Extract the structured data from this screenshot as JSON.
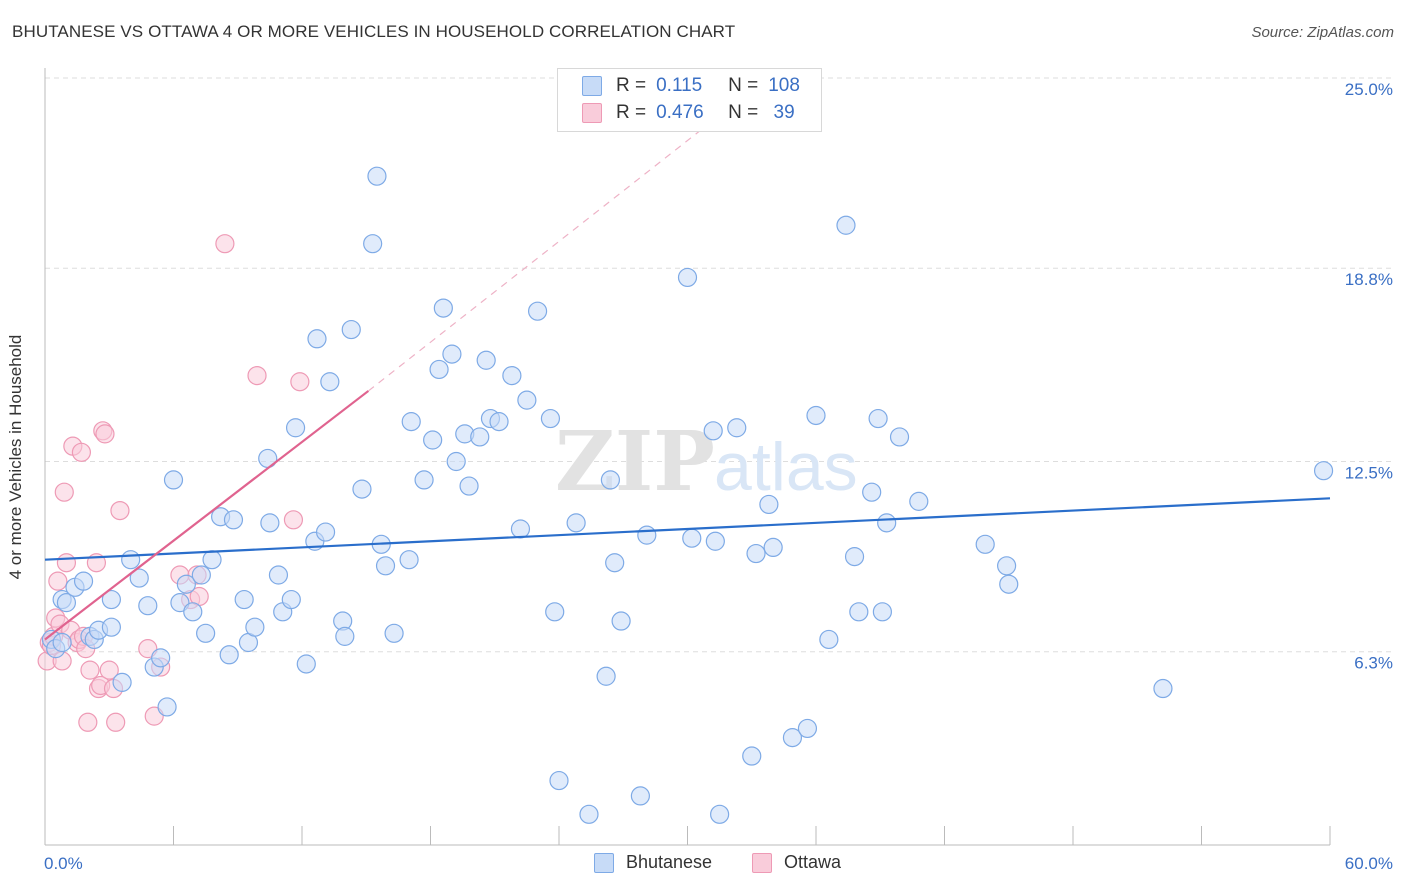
{
  "header": {
    "title": "BHUTANESE VS OTTAWA 4 OR MORE VEHICLES IN HOUSEHOLD CORRELATION CHART",
    "source": "Source: ZipAtlas.com"
  },
  "legend": {
    "rows": [
      {
        "r_label": "R =",
        "r_value": "0.115",
        "n_label": "N =",
        "n_value": "108"
      },
      {
        "r_label": "R =",
        "r_value": "0.476",
        "n_label": "N =",
        "n_value": " 39"
      }
    ]
  },
  "colors": {
    "blue_fill": "#c7dbf7",
    "blue_stroke": "#7eaae6",
    "blue_line": "#2a6ecb",
    "pink_fill": "#f9ccda",
    "pink_stroke": "#ee9ab5",
    "pink_line": "#e0638f",
    "axis_label": "#3a6fc4",
    "grid": "#dddddd"
  },
  "chart_data": {
    "type": "scatter",
    "title": "BHUTANESE VS OTTAWA 4 OR MORE VEHICLES IN HOUSEHOLD CORRELATION CHART",
    "xlabel": "",
    "ylabel": "4 or more Vehicles in Household",
    "xlim": [
      0,
      60
    ],
    "ylim": [
      0,
      25.0
    ],
    "x_tick_labels": [
      "0.0%",
      "60.0%"
    ],
    "y_ticks": [
      6.3,
      12.5,
      18.8,
      25.0
    ],
    "y_tick_labels": [
      "6.3%",
      "12.5%",
      "18.8%",
      "25.0%"
    ],
    "grid": true,
    "watermark": "ZIPatlas",
    "series": [
      {
        "name": "Bhutanese",
        "r": 0.115,
        "n": 108,
        "trend": {
          "x0": 0,
          "y0": 9.3,
          "x1": 60,
          "y1": 11.3
        },
        "points": [
          [
            0.3,
            6.7
          ],
          [
            0.5,
            6.4
          ],
          [
            0.8,
            6.6
          ],
          [
            0.8,
            8.0
          ],
          [
            1.0,
            7.9
          ],
          [
            1.4,
            8.4
          ],
          [
            1.8,
            8.6
          ],
          [
            2.1,
            6.8
          ],
          [
            2.3,
            6.7
          ],
          [
            2.5,
            7.0
          ],
          [
            3.1,
            7.1
          ],
          [
            3.1,
            8.0
          ],
          [
            3.6,
            5.3
          ],
          [
            4.0,
            9.3
          ],
          [
            4.4,
            8.7
          ],
          [
            4.8,
            7.8
          ],
          [
            5.1,
            5.8
          ],
          [
            5.4,
            6.1
          ],
          [
            5.7,
            4.5
          ],
          [
            6.0,
            11.9
          ],
          [
            6.3,
            7.9
          ],
          [
            6.6,
            8.5
          ],
          [
            6.9,
            7.6
          ],
          [
            7.3,
            8.8
          ],
          [
            7.5,
            6.9
          ],
          [
            7.8,
            9.3
          ],
          [
            8.2,
            10.7
          ],
          [
            8.6,
            6.2
          ],
          [
            8.8,
            10.6
          ],
          [
            9.3,
            8.0
          ],
          [
            9.5,
            6.6
          ],
          [
            9.8,
            7.1
          ],
          [
            10.4,
            12.6
          ],
          [
            10.5,
            10.5
          ],
          [
            10.9,
            8.8
          ],
          [
            11.1,
            7.6
          ],
          [
            11.5,
            8.0
          ],
          [
            11.7,
            13.6
          ],
          [
            12.2,
            5.9
          ],
          [
            12.6,
            9.9
          ],
          [
            12.7,
            16.5
          ],
          [
            13.1,
            10.2
          ],
          [
            13.3,
            15.1
          ],
          [
            13.9,
            7.3
          ],
          [
            14.0,
            6.8
          ],
          [
            14.3,
            16.8
          ],
          [
            14.8,
            11.6
          ],
          [
            15.3,
            19.6
          ],
          [
            15.5,
            21.8
          ],
          [
            15.7,
            9.8
          ],
          [
            15.9,
            9.1
          ],
          [
            16.3,
            6.9
          ],
          [
            17.0,
            9.3
          ],
          [
            17.1,
            13.8
          ],
          [
            17.7,
            11.9
          ],
          [
            18.1,
            13.2
          ],
          [
            18.4,
            15.5
          ],
          [
            18.6,
            17.5
          ],
          [
            19.0,
            16.0
          ],
          [
            19.2,
            12.5
          ],
          [
            19.6,
            13.4
          ],
          [
            19.8,
            11.7
          ],
          [
            20.3,
            13.3
          ],
          [
            20.6,
            15.8
          ],
          [
            20.8,
            13.9
          ],
          [
            21.2,
            13.8
          ],
          [
            21.8,
            15.3
          ],
          [
            22.2,
            10.3
          ],
          [
            22.5,
            14.5
          ],
          [
            23.0,
            17.4
          ],
          [
            23.6,
            13.9
          ],
          [
            23.8,
            7.6
          ],
          [
            24.0,
            2.1
          ],
          [
            24.8,
            10.5
          ],
          [
            25.4,
            1.0
          ],
          [
            26.2,
            5.5
          ],
          [
            26.4,
            11.9
          ],
          [
            26.6,
            9.2
          ],
          [
            26.9,
            7.3
          ],
          [
            27.8,
            1.6
          ],
          [
            28.1,
            10.1
          ],
          [
            30.0,
            18.5
          ],
          [
            30.2,
            10.0
          ],
          [
            31.2,
            13.5
          ],
          [
            31.3,
            9.9
          ],
          [
            31.5,
            1.0
          ],
          [
            32.3,
            13.6
          ],
          [
            33.0,
            2.9
          ],
          [
            33.2,
            9.5
          ],
          [
            33.8,
            11.1
          ],
          [
            34.0,
            9.7
          ],
          [
            34.9,
            3.5
          ],
          [
            35.6,
            3.8
          ],
          [
            36.0,
            14.0
          ],
          [
            36.6,
            6.7
          ],
          [
            37.4,
            20.2
          ],
          [
            37.8,
            9.4
          ],
          [
            38.0,
            7.6
          ],
          [
            38.6,
            11.5
          ],
          [
            38.9,
            13.9
          ],
          [
            39.1,
            7.6
          ],
          [
            39.3,
            10.5
          ],
          [
            39.9,
            13.3
          ],
          [
            40.8,
            11.2
          ],
          [
            43.9,
            9.8
          ],
          [
            44.9,
            9.1
          ],
          [
            45.0,
            8.5
          ],
          [
            52.2,
            5.1
          ],
          [
            59.7,
            12.2
          ]
        ]
      },
      {
        "name": "Ottawa",
        "r": 0.476,
        "n": 39,
        "trend": {
          "x0": 0,
          "y0": 6.7,
          "x1": 15.1,
          "y1": 14.8
        },
        "trend_dashed": {
          "x0": 15.1,
          "y0": 14.8,
          "x1": 30.8,
          "y1": 23.4
        },
        "points": [
          [
            0.1,
            6.0
          ],
          [
            0.2,
            6.6
          ],
          [
            0.3,
            6.5
          ],
          [
            0.4,
            6.8
          ],
          [
            0.5,
            7.4
          ],
          [
            0.6,
            8.6
          ],
          [
            0.7,
            7.2
          ],
          [
            0.8,
            6.0
          ],
          [
            0.9,
            11.5
          ],
          [
            1.0,
            9.2
          ],
          [
            1.2,
            7.0
          ],
          [
            1.3,
            13.0
          ],
          [
            1.5,
            6.6
          ],
          [
            1.6,
            6.7
          ],
          [
            1.7,
            12.8
          ],
          [
            1.8,
            6.8
          ],
          [
            1.9,
            6.4
          ],
          [
            2.0,
            4.0
          ],
          [
            2.1,
            5.7
          ],
          [
            2.4,
            9.2
          ],
          [
            2.5,
            5.1
          ],
          [
            2.6,
            5.2
          ],
          [
            2.7,
            13.5
          ],
          [
            2.8,
            13.4
          ],
          [
            3.0,
            5.7
          ],
          [
            3.2,
            5.1
          ],
          [
            3.3,
            4.0
          ],
          [
            3.5,
            10.9
          ],
          [
            4.8,
            6.4
          ],
          [
            5.1,
            4.2
          ],
          [
            5.4,
            5.8
          ],
          [
            6.3,
            8.8
          ],
          [
            6.8,
            8.0
          ],
          [
            7.1,
            8.8
          ],
          [
            7.2,
            8.1
          ],
          [
            8.4,
            19.6
          ],
          [
            9.9,
            15.3
          ],
          [
            11.6,
            10.6
          ],
          [
            11.9,
            15.1
          ]
        ]
      }
    ]
  },
  "bottom_legend": {
    "items": [
      "Bhutanese",
      "Ottawa"
    ]
  }
}
